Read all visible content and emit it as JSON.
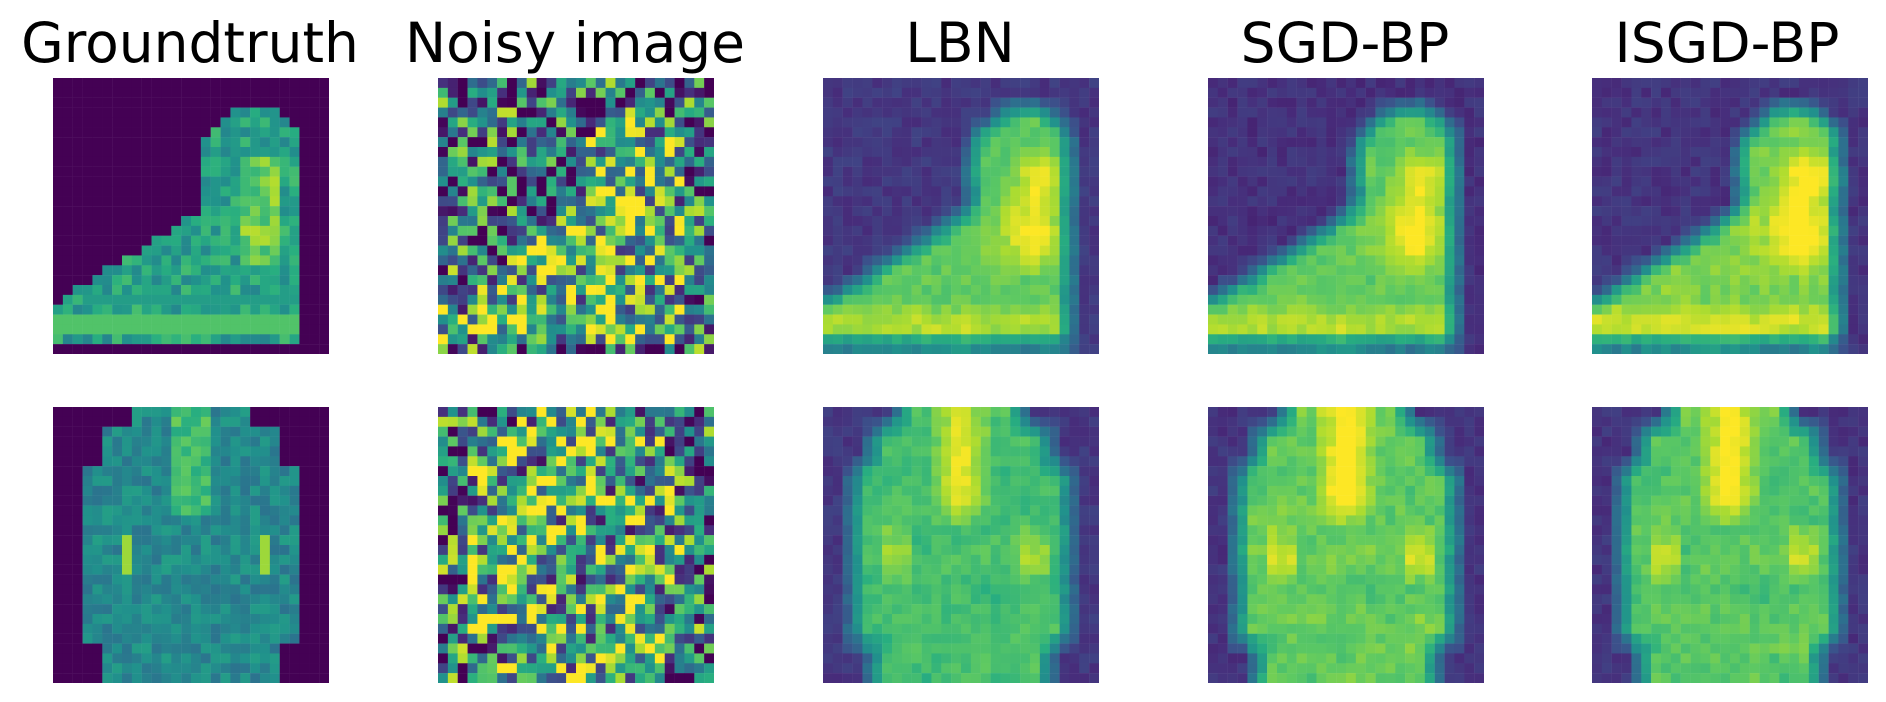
{
  "columns": [
    {
      "title": "Groundtruth",
      "key": "groundtruth"
    },
    {
      "title": "Noisy image",
      "key": "noisy"
    },
    {
      "title": "LBN",
      "key": "lbn"
    },
    {
      "title": "SGD-BP",
      "key": "sgdbp"
    },
    {
      "title": "ISGD-BP",
      "key": "isgdbp"
    }
  ],
  "rows": [
    {
      "subject": "ankle boot"
    },
    {
      "subject": "coat"
    }
  ],
  "colormap": {
    "name": "viridis",
    "stops": [
      "#440154",
      "#472d7b",
      "#3b528b",
      "#2c728e",
      "#21918c",
      "#28ae80",
      "#5ec962",
      "#addc30",
      "#fde725"
    ]
  }
}
